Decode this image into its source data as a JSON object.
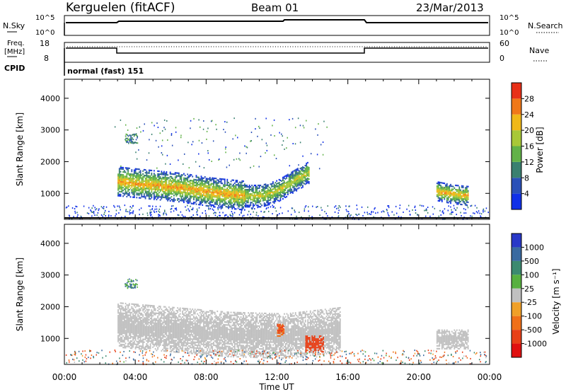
{
  "header": {
    "station": "Kerguelen (fitACF)",
    "beam": "Beam 01",
    "date": "23/Mar/2013"
  },
  "params": {
    "nsky_label": "N.Sky",
    "nsearch_label": "N.Search",
    "nsky_ticks": [
      "10^5",
      "10^0"
    ],
    "nsearch_ticks": [
      "10^5",
      "10^0"
    ],
    "freq_label_1": "Freq.",
    "freq_label_2": "[MHz]",
    "freq_ticks": [
      "18",
      "8"
    ],
    "nave_label": "Nave",
    "nave_ticks": [
      "60",
      "0"
    ],
    "cpid_label": "CPID",
    "cpid_text": "normal (fast) 151"
  },
  "axes": {
    "xlabel": "Time UT",
    "ylabel_top": "Slant Range [km]",
    "ylabel_bottom": "Slant Range [km]",
    "x_ticks": [
      "00:00",
      "04:00",
      "08:00",
      "12:00",
      "16:00",
      "20:00",
      "00:00"
    ],
    "y_ticks": [
      "1000",
      "2000",
      "3000",
      "4000"
    ]
  },
  "colorbars": {
    "power": {
      "label": "Power [dB]",
      "ticks": [
        "4",
        "8",
        "12",
        "16",
        "20",
        "24",
        "28"
      ],
      "colors": [
        "#1030e8",
        "#2a50b8",
        "#3a8070",
        "#62b248",
        "#a8c838",
        "#f0b818",
        "#f07818",
        "#e83018"
      ]
    },
    "velocity": {
      "label": "Velocity [m s⁻¹]",
      "ticks": [
        "1000",
        "500",
        "100",
        "25",
        "-25",
        "-100",
        "-500",
        "-1000"
      ],
      "colors": [
        "#2838c8",
        "#3a6aa0",
        "#3c8a70",
        "#58b040",
        "#c0c0c0",
        "#f0a028",
        "#f07018",
        "#e84018",
        "#e01010"
      ]
    }
  },
  "chart_data": [
    {
      "type": "heatmap",
      "title": "Power",
      "xlabel": "Time UT",
      "ylabel": "Slant Range [km]",
      "xlim": [
        0,
        24
      ],
      "ylim": [
        180,
        4600
      ],
      "colorbar": "Power [dB]",
      "features": [
        {
          "t0": 3.0,
          "t1": 10.2,
          "r_center": [
            1400,
            1300,
            1200,
            1050,
            950
          ],
          "width": 450,
          "level": 24
        },
        {
          "t0": 10.2,
          "t1": 13.8,
          "r_center": [
            950,
            950,
            1100,
            1400,
            1700
          ],
          "width": 350,
          "level": 20
        },
        {
          "t0": 21.0,
          "t1": 22.8,
          "r_center": [
            1100,
            1000,
            950
          ],
          "width": 300,
          "level": 24
        }
      ]
    },
    {
      "type": "heatmap",
      "title": "Velocity",
      "xlabel": "Time UT",
      "ylabel": "Slant Range [km]",
      "xlim": [
        0,
        24
      ],
      "ylim": [
        180,
        4600
      ],
      "colorbar": "Velocity [m s⁻¹]",
      "features": [
        {
          "t0": 3.0,
          "t1": 15.6,
          "r_center": [
            1450,
            1300,
            1150,
            1100,
            1300
          ],
          "width": 700,
          "velocity": 0
        },
        {
          "t0": 12.0,
          "t1": 12.4,
          "r_center": [
            1300
          ],
          "width": 200,
          "velocity": -300
        },
        {
          "t0": 13.6,
          "t1": 14.6,
          "r_center": [
            850
          ],
          "width": 250,
          "velocity": -600
        },
        {
          "t0": 21.0,
          "t1": 22.8,
          "r_center": [
            1000
          ],
          "width": 300,
          "velocity": 0
        }
      ]
    }
  ]
}
